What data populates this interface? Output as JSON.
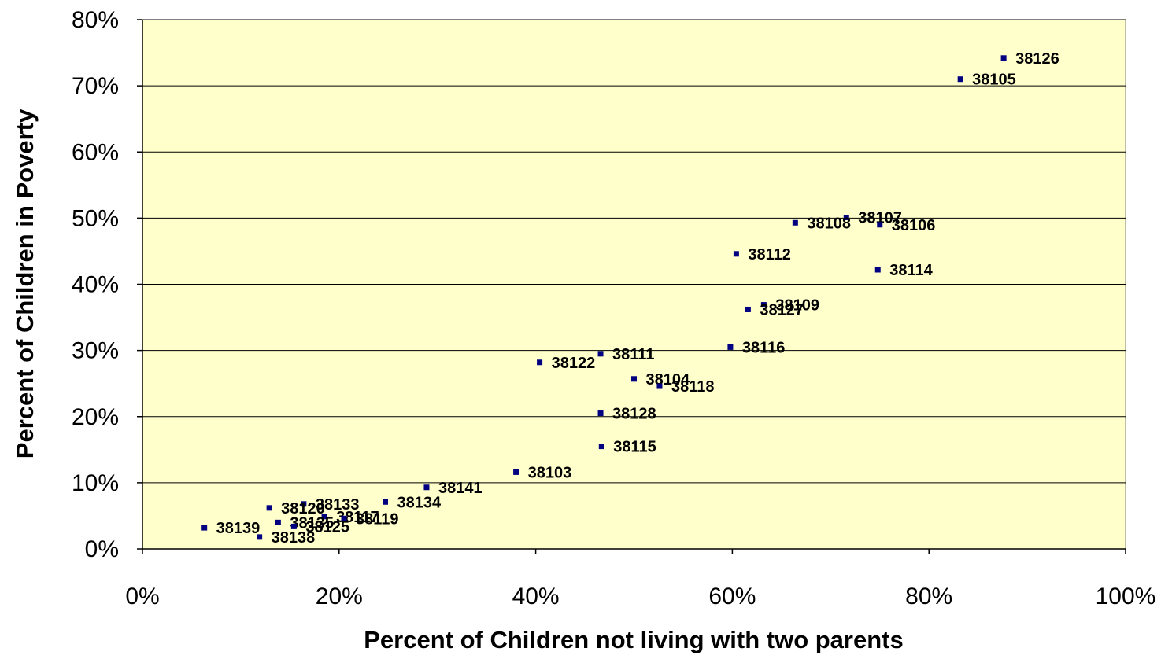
{
  "chart_data": {
    "type": "scatter",
    "title": "",
    "xlabel": "Percent of Children not living with two parents",
    "ylabel": "Percent of Children in Poverty",
    "xlim": [
      0,
      100
    ],
    "ylim": [
      0,
      80
    ],
    "x_ticks": [
      {
        "value": 0,
        "label": "0%"
      },
      {
        "value": 20,
        "label": "20%"
      },
      {
        "value": 40,
        "label": "40%"
      },
      {
        "value": 60,
        "label": "60%"
      },
      {
        "value": 80,
        "label": "80%"
      },
      {
        "value": 100,
        "label": "100%"
      }
    ],
    "y_ticks": [
      {
        "value": 0,
        "label": "0%"
      },
      {
        "value": 10,
        "label": "10%"
      },
      {
        "value": 20,
        "label": "20%"
      },
      {
        "value": 30,
        "label": "30%"
      },
      {
        "value": 40,
        "label": "40%"
      },
      {
        "value": 50,
        "label": "50%"
      },
      {
        "value": 60,
        "label": "60%"
      },
      {
        "value": 70,
        "label": "70%"
      },
      {
        "value": 80,
        "label": "80%"
      }
    ],
    "grid": {
      "horizontal": true,
      "vertical": false
    },
    "legend": "none",
    "plot_background": "#FFFFCC",
    "marker_color": "#000080",
    "points": [
      {
        "label": "38126",
        "x": 87.6,
        "y": 74.2
      },
      {
        "label": "38105",
        "x": 83.2,
        "y": 71.0
      },
      {
        "label": "38107",
        "x": 71.6,
        "y": 50.1
      },
      {
        "label": "38108",
        "x": 66.4,
        "y": 49.3
      },
      {
        "label": "38106",
        "x": 75.0,
        "y": 49.0
      },
      {
        "label": "38112",
        "x": 60.4,
        "y": 44.6
      },
      {
        "label": "38114",
        "x": 74.8,
        "y": 42.2
      },
      {
        "label": "38109",
        "x": 63.2,
        "y": 36.9
      },
      {
        "label": "38127",
        "x": 61.6,
        "y": 36.2
      },
      {
        "label": "38116",
        "x": 59.8,
        "y": 30.5
      },
      {
        "label": "38111",
        "x": 46.6,
        "y": 29.5
      },
      {
        "label": "38122",
        "x": 40.4,
        "y": 28.2
      },
      {
        "label": "38104",
        "x": 50.0,
        "y": 25.7
      },
      {
        "label": "38118",
        "x": 52.6,
        "y": 24.6
      },
      {
        "label": "38128",
        "x": 46.6,
        "y": 20.5
      },
      {
        "label": "38115",
        "x": 46.7,
        "y": 15.5
      },
      {
        "label": "38103",
        "x": 38.0,
        "y": 11.6
      },
      {
        "label": "38141",
        "x": 28.9,
        "y": 9.3
      },
      {
        "label": "38134",
        "x": 24.7,
        "y": 7.1
      },
      {
        "label": "38133",
        "x": 16.4,
        "y": 6.8
      },
      {
        "label": "38120",
        "x": 12.9,
        "y": 6.2
      },
      {
        "label": "38117",
        "x": 18.5,
        "y": 4.9
      },
      {
        "label": "38119",
        "x": 20.5,
        "y": 4.6
      },
      {
        "label": "38135",
        "x": 13.8,
        "y": 4.0
      },
      {
        "label": "38125",
        "x": 15.4,
        "y": 3.4
      },
      {
        "label": "38139",
        "x": 6.3,
        "y": 3.2
      },
      {
        "label": "38138",
        "x": 11.9,
        "y": 1.8
      }
    ]
  }
}
